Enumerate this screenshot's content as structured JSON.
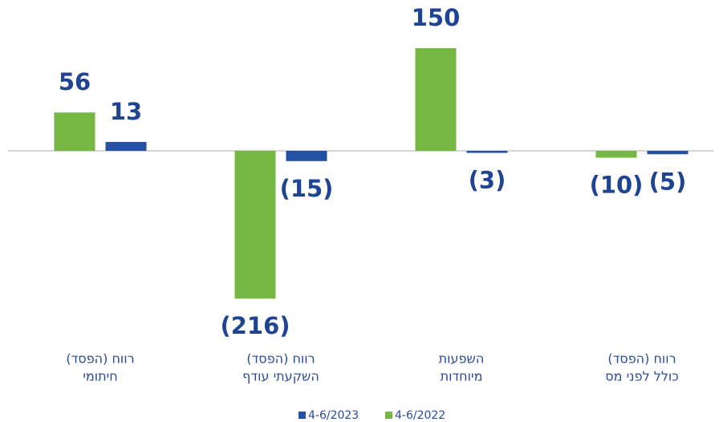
{
  "chart_data": {
    "type": "bar",
    "categories": [
      [
        "רווח (הפסד)",
        "חיתומי"
      ],
      [
        "רווח (הפסד)",
        "השקעתי עודף"
      ],
      [
        "השפעות",
        "מיוחדות"
      ],
      [
        "רווח (הפסד)",
        "כולל לפני מס"
      ]
    ],
    "series": [
      {
        "name": "4-6/2022",
        "color": "#76b743",
        "values": [
          56,
          -216,
          150,
          -10
        ],
        "value_labels": [
          "56",
          "(216)",
          "150",
          "(10)"
        ]
      },
      {
        "name": "4-6/2023",
        "color": "#2451a4",
        "values": [
          13,
          -15,
          -3,
          -5
        ],
        "value_labels": [
          "13",
          "(15)",
          "(3)",
          "(5)"
        ]
      }
    ],
    "grid": false
  }
}
